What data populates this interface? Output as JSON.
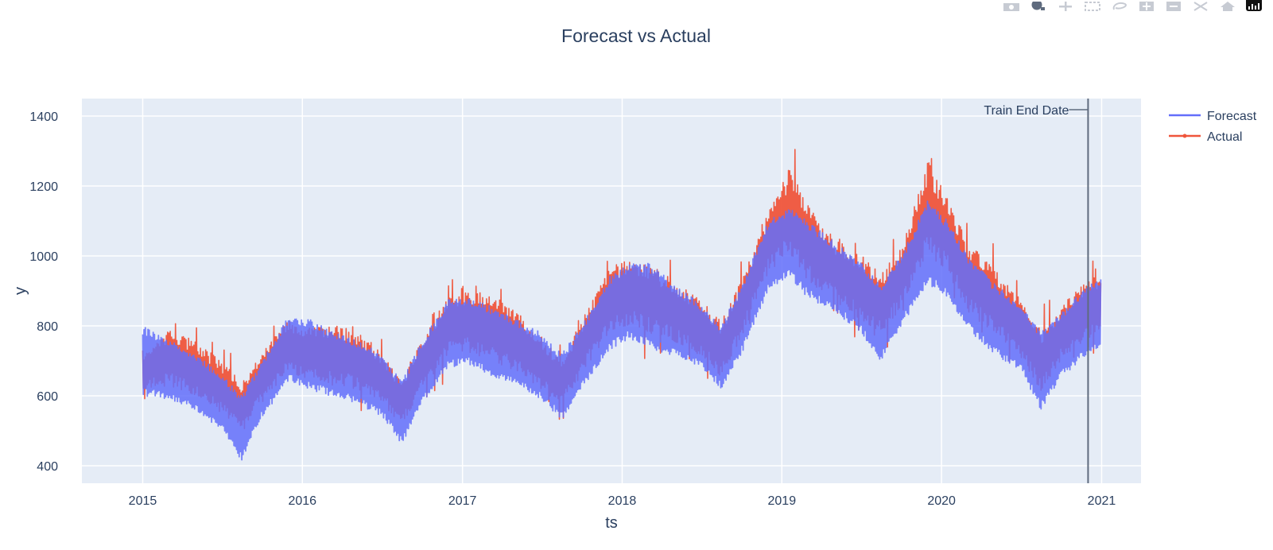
{
  "modebar": {
    "buttons": [
      {
        "name": "camera-icon",
        "active": false
      },
      {
        "name": "zoom-icon",
        "active": true
      },
      {
        "name": "pan-icon",
        "active": false
      },
      {
        "name": "box-select-icon",
        "active": false
      },
      {
        "name": "lasso-select-icon",
        "active": false
      },
      {
        "name": "zoom-in-icon",
        "active": false
      },
      {
        "name": "zoom-out-icon",
        "active": false
      },
      {
        "name": "autoscale-icon",
        "active": false
      },
      {
        "name": "reset-axes-icon",
        "active": false
      }
    ],
    "logo": "plotly-logo-icon"
  },
  "chart_data": {
    "type": "line",
    "title": "Forecast vs Actual",
    "xlabel": "ts",
    "ylabel": "y",
    "x_range": [
      "2014-08-15",
      "2021-04-01"
    ],
    "y_range": [
      350,
      1450
    ],
    "y_ticks": [
      400,
      600,
      800,
      1000,
      1200,
      1400
    ],
    "x_ticks": [
      "2015",
      "2016",
      "2017",
      "2018",
      "2019",
      "2020",
      "2021"
    ],
    "x_tick_dates": [
      "2015-01-01",
      "2016-01-01",
      "2017-01-01",
      "2018-01-01",
      "2019-01-01",
      "2020-01-01",
      "2021-01-01"
    ],
    "grid": true,
    "legend_position": "top-right",
    "background": "#e5ecf6",
    "series": [
      {
        "name": "Actual",
        "color": "#ef553b",
        "x": [
          "2015-01-01",
          "2015-03-01",
          "2015-05-01",
          "2015-07-01",
          "2015-08-15",
          "2015-10-01",
          "2015-12-01",
          "2016-01-15",
          "2016-03-01",
          "2016-05-01",
          "2016-07-01",
          "2016-08-15",
          "2016-10-01",
          "2016-12-01",
          "2017-01-15",
          "2017-03-01",
          "2017-05-01",
          "2017-07-01",
          "2017-08-15",
          "2017-10-01",
          "2017-12-01",
          "2018-01-15",
          "2018-03-01",
          "2018-05-01",
          "2018-07-01",
          "2018-08-15",
          "2018-10-01",
          "2018-12-01",
          "2019-01-20",
          "2019-03-01",
          "2019-05-01",
          "2019-07-01",
          "2019-08-15",
          "2019-10-01",
          "2019-12-01",
          "2020-01-15",
          "2020-03-01",
          "2020-05-01",
          "2020-07-01",
          "2020-08-15",
          "2020-10-01",
          "2020-12-01",
          "2020-12-31"
        ],
        "low": [
          580,
          560,
          540,
          480,
          450,
          520,
          610,
          580,
          560,
          550,
          520,
          460,
          560,
          650,
          660,
          620,
          600,
          560,
          510,
          600,
          700,
          720,
          700,
          680,
          650,
          580,
          700,
          880,
          900,
          840,
          800,
          740,
          700,
          780,
          900,
          860,
          760,
          700,
          640,
          540,
          640,
          700,
          690
        ],
        "high": [
          760,
          860,
          820,
          770,
          690,
          790,
          880,
          860,
          880,
          860,
          780,
          690,
          830,
          960,
          970,
          980,
          920,
          830,
          760,
          880,
          1040,
          1080,
          1060,
          1000,
          940,
          880,
          1000,
          1200,
          1360,
          1240,
          1120,
          1080,
          1020,
          1100,
          1380,
          1260,
          1120,
          1040,
          940,
          860,
          920,
          1000,
          1020
        ]
      },
      {
        "name": "Forecast",
        "color": "#636efa",
        "x": [
          "2015-01-01",
          "2015-03-01",
          "2015-05-01",
          "2015-07-01",
          "2015-08-15",
          "2015-10-01",
          "2015-12-01",
          "2016-01-15",
          "2016-03-01",
          "2016-05-01",
          "2016-07-01",
          "2016-08-15",
          "2016-10-01",
          "2016-12-01",
          "2017-01-15",
          "2017-03-01",
          "2017-05-01",
          "2017-07-01",
          "2017-08-15",
          "2017-10-01",
          "2017-12-01",
          "2018-01-15",
          "2018-03-01",
          "2018-05-01",
          "2018-07-01",
          "2018-08-15",
          "2018-10-01",
          "2018-12-01",
          "2019-01-20",
          "2019-03-01",
          "2019-05-01",
          "2019-07-01",
          "2019-08-15",
          "2019-10-01",
          "2019-12-01",
          "2020-01-15",
          "2020-03-01",
          "2020-05-01",
          "2020-07-01",
          "2020-08-15",
          "2020-10-01",
          "2020-12-01",
          "2020-12-31"
        ],
        "low": [
          600,
          590,
          560,
          500,
          415,
          540,
          640,
          620,
          600,
          580,
          540,
          460,
          580,
          680,
          690,
          660,
          630,
          590,
          530,
          620,
          730,
          760,
          740,
          710,
          680,
          620,
          720,
          900,
          940,
          880,
          840,
          780,
          700,
          800,
          920,
          880,
          790,
          720,
          670,
          560,
          650,
          720,
          740
        ],
        "high": [
          800,
          760,
          720,
          660,
          600,
          700,
          830,
          820,
          790,
          760,
          720,
          640,
          760,
          880,
          880,
          860,
          820,
          780,
          720,
          800,
          940,
          980,
          980,
          920,
          860,
          800,
          920,
          1100,
          1140,
          1100,
          1040,
          980,
          920,
          1000,
          1160,
          1100,
          1000,
          920,
          860,
          780,
          840,
          920,
          940
        ]
      }
    ],
    "annotation": {
      "date": "2020-12-01",
      "label": "Train End Date",
      "color": "#5f6b7e"
    }
  }
}
